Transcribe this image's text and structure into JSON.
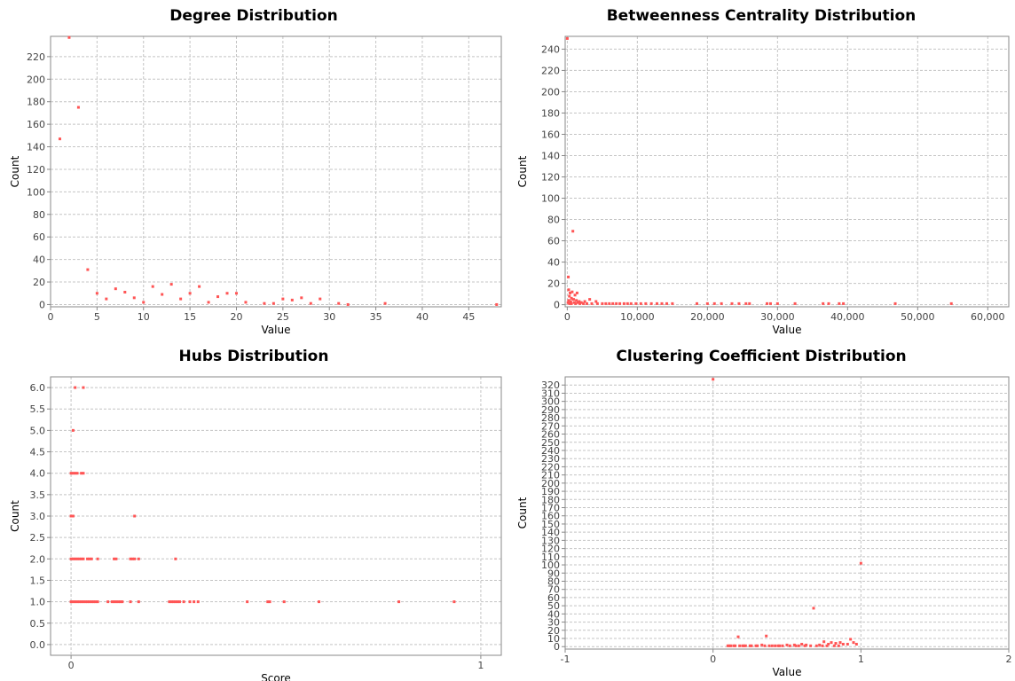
{
  "chart_data": [
    {
      "type": "scatter",
      "title": "Degree Distribution",
      "xlabel": "Value",
      "ylabel": "Count",
      "xlim": [
        0,
        48.5
      ],
      "ylim": [
        -2,
        238
      ],
      "xticks": [
        0,
        5,
        10,
        15,
        20,
        25,
        30,
        35,
        40,
        45
      ],
      "xtick_labels": [
        "0",
        "5",
        "10",
        "15",
        "20",
        "25",
        "30",
        "35",
        "40",
        "45"
      ],
      "yticks": [
        0,
        20,
        40,
        60,
        80,
        100,
        120,
        140,
        160,
        180,
        200,
        220
      ],
      "ytick_labels": [
        "0",
        "20",
        "40",
        "60",
        "80",
        "100",
        "120",
        "140",
        "160",
        "180",
        "200",
        "220"
      ],
      "grid": true,
      "color": "#ff5555",
      "points": [
        [
          1,
          147
        ],
        [
          2,
          237
        ],
        [
          3,
          175
        ],
        [
          4,
          31
        ],
        [
          5,
          10
        ],
        [
          6,
          5
        ],
        [
          7,
          14
        ],
        [
          8,
          11
        ],
        [
          9,
          6
        ],
        [
          10,
          2
        ],
        [
          11,
          16
        ],
        [
          12,
          9
        ],
        [
          13,
          18
        ],
        [
          14,
          5
        ],
        [
          15,
          10
        ],
        [
          16,
          16
        ],
        [
          17,
          2
        ],
        [
          18,
          7
        ],
        [
          19,
          10
        ],
        [
          20,
          10
        ],
        [
          21,
          2
        ],
        [
          23,
          1
        ],
        [
          24,
          1
        ],
        [
          25,
          5
        ],
        [
          26,
          4
        ],
        [
          27,
          6
        ],
        [
          28,
          1
        ],
        [
          29,
          5
        ],
        [
          31,
          1
        ],
        [
          32,
          0
        ],
        [
          36,
          1
        ],
        [
          48,
          0
        ]
      ]
    },
    {
      "type": "scatter",
      "title": "Betweenness Centrality Distribution",
      "xlabel": "Value",
      "ylabel": "Count",
      "xlim": [
        -300,
        63000
      ],
      "ylim": [
        -2,
        252
      ],
      "xticks": [
        0,
        10000,
        20000,
        30000,
        40000,
        50000,
        60000
      ],
      "xtick_labels": [
        "0",
        "10,000",
        "20,000",
        "30,000",
        "40,000",
        "50,000",
        "60,000"
      ],
      "yticks": [
        0,
        20,
        40,
        60,
        80,
        100,
        120,
        140,
        160,
        180,
        200,
        220,
        240
      ],
      "ytick_labels": [
        "0",
        "20",
        "40",
        "60",
        "80",
        "100",
        "120",
        "140",
        "160",
        "180",
        "200",
        "220",
        "240"
      ],
      "grid": true,
      "color": "#ff5555",
      "points": [
        [
          0,
          250
        ],
        [
          150,
          26
        ],
        [
          800,
          69
        ],
        [
          200,
          14
        ],
        [
          400,
          11
        ],
        [
          700,
          12
        ],
        [
          1100,
          9
        ],
        [
          1400,
          11
        ],
        [
          300,
          8
        ],
        [
          600,
          6
        ],
        [
          900,
          5
        ],
        [
          1300,
          4
        ],
        [
          1700,
          3
        ],
        [
          2000,
          2
        ],
        [
          2500,
          3
        ],
        [
          3200,
          5
        ],
        [
          4100,
          3
        ],
        [
          200,
          4
        ],
        [
          500,
          3
        ],
        [
          1000,
          2
        ],
        [
          1500,
          2
        ],
        [
          100,
          2
        ],
        [
          300,
          1
        ],
        [
          600,
          1
        ],
        [
          1200,
          1
        ],
        [
          1800,
          1
        ],
        [
          2300,
          1
        ],
        [
          2800,
          1
        ],
        [
          3500,
          1
        ],
        [
          4300,
          1
        ],
        [
          5000,
          1
        ],
        [
          5500,
          1
        ],
        [
          6000,
          1
        ],
        [
          6500,
          1
        ],
        [
          7000,
          1
        ],
        [
          7500,
          1
        ],
        [
          8100,
          1
        ],
        [
          8600,
          1
        ],
        [
          9100,
          1
        ],
        [
          9800,
          1
        ],
        [
          10500,
          1
        ],
        [
          11200,
          1
        ],
        [
          12000,
          1
        ],
        [
          12800,
          1
        ],
        [
          13500,
          1
        ],
        [
          14200,
          1
        ],
        [
          15000,
          1
        ],
        [
          18500,
          1
        ],
        [
          20000,
          1
        ],
        [
          21000,
          1
        ],
        [
          22000,
          1
        ],
        [
          23500,
          1
        ],
        [
          24500,
          1
        ],
        [
          25500,
          1
        ],
        [
          26000,
          1
        ],
        [
          28500,
          1
        ],
        [
          29000,
          1
        ],
        [
          30000,
          1
        ],
        [
          32500,
          1
        ],
        [
          36500,
          1
        ],
        [
          37300,
          1
        ],
        [
          38800,
          1
        ],
        [
          39400,
          1
        ],
        [
          46800,
          1
        ],
        [
          54800,
          1
        ]
      ]
    },
    {
      "type": "scatter",
      "title": "Hubs Distribution",
      "xlabel": "Score",
      "ylabel": "Count",
      "xlim": [
        -0.05,
        1.05
      ],
      "ylim": [
        -0.25,
        6.25
      ],
      "xticks": [
        0,
        1
      ],
      "xtick_labels": [
        "0",
        "1"
      ],
      "yticks": [
        0.0,
        0.5,
        1.0,
        1.5,
        2.0,
        2.5,
        3.0,
        3.5,
        4.0,
        4.5,
        5.0,
        5.5,
        6.0
      ],
      "ytick_labels": [
        "0.0",
        "0.5",
        "1.0",
        "1.5",
        "2.0",
        "2.5",
        "3.0",
        "3.5",
        "4.0",
        "4.5",
        "5.0",
        "5.5",
        "6.0"
      ],
      "grid": true,
      "color": "#ff5555",
      "points": [
        [
          0.01,
          6
        ],
        [
          0.03,
          6
        ],
        [
          0.005,
          5
        ],
        [
          0.0,
          4
        ],
        [
          0.005,
          4
        ],
        [
          0.01,
          4
        ],
        [
          0.015,
          4
        ],
        [
          0.025,
          4
        ],
        [
          0.03,
          4
        ],
        [
          0.0,
          3
        ],
        [
          0.005,
          3
        ],
        [
          0.155,
          3
        ],
        [
          0.0,
          2
        ],
        [
          0.005,
          2
        ],
        [
          0.01,
          2
        ],
        [
          0.015,
          2
        ],
        [
          0.02,
          2
        ],
        [
          0.025,
          2
        ],
        [
          0.03,
          2
        ],
        [
          0.04,
          2
        ],
        [
          0.045,
          2
        ],
        [
          0.05,
          2
        ],
        [
          0.065,
          2
        ],
        [
          0.105,
          2
        ],
        [
          0.11,
          2
        ],
        [
          0.145,
          2
        ],
        [
          0.15,
          2
        ],
        [
          0.155,
          2
        ],
        [
          0.165,
          2
        ],
        [
          0.255,
          2
        ],
        [
          0.0,
          1
        ],
        [
          0.005,
          1
        ],
        [
          0.01,
          1
        ],
        [
          0.015,
          1
        ],
        [
          0.02,
          1
        ],
        [
          0.025,
          1
        ],
        [
          0.03,
          1
        ],
        [
          0.035,
          1
        ],
        [
          0.04,
          1
        ],
        [
          0.045,
          1
        ],
        [
          0.05,
          1
        ],
        [
          0.055,
          1
        ],
        [
          0.06,
          1
        ],
        [
          0.065,
          1
        ],
        [
          0.09,
          1
        ],
        [
          0.1,
          1
        ],
        [
          0.105,
          1
        ],
        [
          0.11,
          1
        ],
        [
          0.115,
          1
        ],
        [
          0.12,
          1
        ],
        [
          0.125,
          1
        ],
        [
          0.145,
          1
        ],
        [
          0.165,
          1
        ],
        [
          0.24,
          1
        ],
        [
          0.245,
          1
        ],
        [
          0.25,
          1
        ],
        [
          0.255,
          1
        ],
        [
          0.26,
          1
        ],
        [
          0.265,
          1
        ],
        [
          0.275,
          1
        ],
        [
          0.29,
          1
        ],
        [
          0.3,
          1
        ],
        [
          0.31,
          1
        ],
        [
          0.43,
          1
        ],
        [
          0.48,
          1
        ],
        [
          0.485,
          1
        ],
        [
          0.52,
          1
        ],
        [
          0.605,
          1
        ],
        [
          0.8,
          1
        ],
        [
          0.935,
          1
        ]
      ]
    },
    {
      "type": "scatter",
      "title": "Clustering Coefficient Distribution",
      "xlabel": "Value",
      "ylabel": "Count",
      "xlim": [
        -1,
        2
      ],
      "ylim": [
        -3,
        330
      ],
      "xticks": [
        -1,
        0,
        1,
        2
      ],
      "xtick_labels": [
        "-1",
        "0",
        "1",
        "2"
      ],
      "yticks": [
        0,
        10,
        20,
        30,
        40,
        50,
        60,
        70,
        80,
        90,
        100,
        110,
        120,
        130,
        140,
        150,
        160,
        170,
        180,
        190,
        200,
        210,
        220,
        230,
        240,
        250,
        260,
        270,
        280,
        290,
        300,
        310,
        320
      ],
      "ytick_labels": [
        "0",
        "10",
        "20",
        "30",
        "40",
        "50",
        "60",
        "70",
        "80",
        "90",
        "100",
        "110",
        "120",
        "130",
        "140",
        "150",
        "160",
        "170",
        "180",
        "190",
        "200",
        "210",
        "220",
        "230",
        "240",
        "250",
        "260",
        "270",
        "280",
        "290",
        "300",
        "310",
        "320"
      ],
      "grid": true,
      "color": "#ff5555",
      "points": [
        [
          0.0,
          327
        ],
        [
          1.0,
          102
        ],
        [
          0.68,
          47
        ],
        [
          0.17,
          12
        ],
        [
          0.36,
          13
        ],
        [
          0.93,
          9
        ],
        [
          0.75,
          6
        ],
        [
          0.8,
          5
        ],
        [
          0.86,
          5
        ],
        [
          0.95,
          5
        ],
        [
          0.78,
          3
        ],
        [
          0.83,
          4
        ],
        [
          0.88,
          3
        ],
        [
          0.91,
          3
        ],
        [
          0.97,
          3
        ],
        [
          0.72,
          2
        ],
        [
          0.63,
          2
        ],
        [
          0.6,
          3
        ],
        [
          0.55,
          2
        ],
        [
          0.5,
          2
        ],
        [
          0.47,
          1
        ],
        [
          0.44,
          1
        ],
        [
          0.4,
          1
        ],
        [
          0.33,
          2
        ],
        [
          0.29,
          1
        ],
        [
          0.25,
          1
        ],
        [
          0.21,
          1
        ],
        [
          0.18,
          1
        ],
        [
          0.14,
          1
        ],
        [
          0.11,
          1
        ],
        [
          0.1,
          1
        ],
        [
          0.12,
          1
        ],
        [
          0.15,
          1
        ],
        [
          0.2,
          1
        ],
        [
          0.22,
          1
        ],
        [
          0.26,
          1
        ],
        [
          0.3,
          1
        ],
        [
          0.35,
          1
        ],
        [
          0.38,
          1
        ],
        [
          0.42,
          1
        ],
        [
          0.45,
          1
        ],
        [
          0.52,
          1
        ],
        [
          0.56,
          1
        ],
        [
          0.58,
          1
        ],
        [
          0.62,
          1
        ],
        [
          0.66,
          1
        ],
        [
          0.7,
          1
        ],
        [
          0.74,
          1
        ],
        [
          0.77,
          1
        ],
        [
          0.82,
          1
        ],
        [
          0.85,
          1
        ]
      ]
    }
  ]
}
